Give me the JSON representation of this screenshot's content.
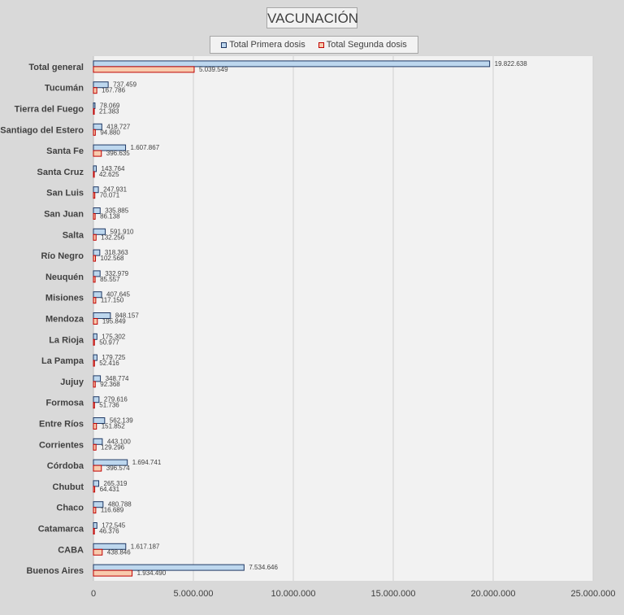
{
  "chart_data": {
    "type": "bar",
    "orientation": "horizontal",
    "title": "VACUNACIÓN",
    "categories": [
      "Total general",
      "Tucumán",
      "Tierra del Fuego",
      "Santiago del Estero",
      "Santa Fe",
      "Santa Cruz",
      "San Luis",
      "San Juan",
      "Salta",
      "Río Negro",
      "Neuquén",
      "Misiones",
      "Mendoza",
      "La Rioja",
      "La Pampa",
      "Jujuy",
      "Formosa",
      "Entre Ríos",
      "Corrientes",
      "Córdoba",
      "Chubut",
      "Chaco",
      "Catamarca",
      "CABA",
      "Buenos Aires"
    ],
    "series": [
      {
        "name": "Total Primera dosis",
        "color": "#bdd7ee",
        "border": "#1f3864",
        "values": [
          19822638,
          737459,
          78069,
          418727,
          1607867,
          143764,
          247931,
          335885,
          591910,
          318363,
          332979,
          407645,
          848157,
          175302,
          179725,
          348774,
          279616,
          562139,
          443100,
          1694741,
          265319,
          480788,
          172545,
          1617187,
          7534646
        ],
        "labels": [
          "19.822.638",
          "737.459",
          "78.069",
          "418.727",
          "1.607.867",
          "143.764",
          "247.931",
          "335.885",
          "591.910",
          "318.363",
          "332.979",
          "407.645",
          "848.157",
          "175.302",
          "179.725",
          "348.774",
          "279.616",
          "562.139",
          "443.100",
          "1.694.741",
          "265.319",
          "480.788",
          "172.545",
          "1.617.187",
          "7.534.646"
        ]
      },
      {
        "name": "Total Segunda dosis",
        "color": "#f8cbad",
        "border": "#c00000",
        "values": [
          5039549,
          167786,
          21383,
          94880,
          396635,
          42625,
          70071,
          86138,
          132256,
          102568,
          85557,
          117150,
          195849,
          50977,
          52416,
          92368,
          51736,
          151852,
          129296,
          396574,
          64431,
          116689,
          46376,
          438846,
          1934490
        ],
        "labels": [
          "5.039.549",
          "167.786",
          "21.383",
          "94.880",
          "396.635",
          "42.625",
          "70.071",
          "86.138",
          "132.256",
          "102.568",
          "85.557",
          "117.150",
          "195.849",
          "50.977",
          "52.416",
          "92.368",
          "51.736",
          "151.852",
          "129.296",
          "396.574",
          "64.431",
          "116.689",
          "46.376",
          "438.846",
          "1.934.490"
        ]
      }
    ],
    "xlim": [
      0,
      25000000
    ],
    "xticks": [
      0,
      5000000,
      10000000,
      15000000,
      20000000,
      25000000
    ],
    "xtick_labels": [
      "0",
      "5.000.000",
      "10.000.000",
      "15.000.000",
      "20.000.000",
      "25.000.000"
    ],
    "grid": true,
    "legend_position": "top"
  }
}
